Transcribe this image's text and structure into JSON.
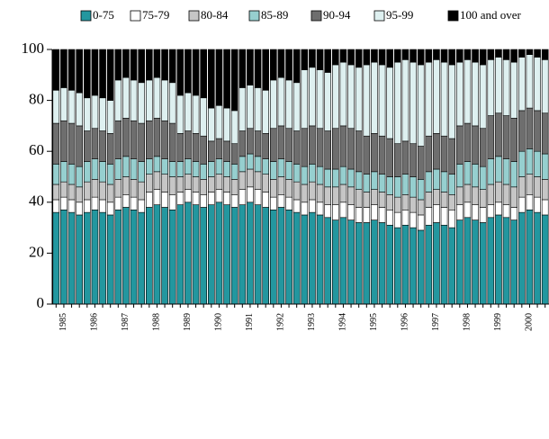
{
  "chart_data": {
    "type": "stacked-bar",
    "categories": [
      null,
      "1985",
      null,
      null,
      null,
      "1986",
      null,
      null,
      null,
      "1987",
      null,
      null,
      null,
      "1988",
      null,
      null,
      null,
      "1989",
      null,
      null,
      null,
      "1990",
      null,
      null,
      null,
      "1991",
      null,
      null,
      null,
      "1992",
      null,
      null,
      null,
      "1993",
      null,
      null,
      null,
      "1994",
      null,
      null,
      null,
      "1995",
      null,
      null,
      null,
      "1996",
      null,
      null,
      null,
      "1997",
      null,
      null,
      null,
      "1998",
      null,
      null,
      null,
      "1999",
      null,
      null,
      null,
      "2000",
      null,
      null
    ],
    "series": [
      {
        "name": "0-75",
        "color": "#23979f",
        "values": [
          36,
          37,
          36,
          35,
          36,
          37,
          36,
          35,
          37,
          38,
          37,
          36,
          38,
          39,
          38,
          37,
          39,
          40,
          39,
          38,
          39,
          40,
          39,
          38,
          39,
          40,
          39,
          38,
          37,
          38,
          37,
          36,
          35,
          36,
          35,
          34,
          33,
          34,
          33,
          32,
          32,
          33,
          32,
          31,
          30,
          31,
          30,
          29,
          31,
          32,
          31,
          30,
          33,
          34,
          33,
          32,
          34,
          35,
          34,
          33,
          36,
          37,
          36,
          35
        ]
      },
      {
        "name": "75-79",
        "color": "#ffffff",
        "values": [
          5,
          5,
          5,
          5,
          5,
          5,
          5,
          5,
          5,
          5,
          5,
          5,
          6,
          6,
          6,
          6,
          5,
          5,
          5,
          5,
          5,
          5,
          5,
          5,
          6,
          6,
          6,
          6,
          5,
          5,
          5,
          5,
          5,
          5,
          5,
          5,
          6,
          6,
          6,
          6,
          6,
          6,
          6,
          6,
          6,
          6,
          6,
          6,
          7,
          7,
          7,
          7,
          6,
          6,
          6,
          6,
          5,
          5,
          5,
          5,
          6,
          6,
          6,
          6
        ]
      },
      {
        "name": "80-84",
        "color": "#c6c6c6",
        "values": [
          6,
          6,
          6,
          6,
          7,
          7,
          7,
          7,
          7,
          7,
          7,
          7,
          7,
          7,
          7,
          7,
          6,
          6,
          6,
          6,
          6,
          6,
          6,
          6,
          7,
          7,
          7,
          7,
          7,
          7,
          7,
          7,
          7,
          7,
          7,
          7,
          7,
          7,
          7,
          7,
          6,
          6,
          6,
          6,
          6,
          6,
          6,
          6,
          6,
          6,
          6,
          6,
          7,
          7,
          7,
          7,
          8,
          8,
          8,
          8,
          8,
          8,
          8,
          8
        ]
      },
      {
        "name": "85-89",
        "color": "#96cfcf",
        "values": [
          8,
          8,
          8,
          8,
          8,
          8,
          8,
          8,
          8,
          8,
          8,
          8,
          6,
          6,
          6,
          6,
          6,
          6,
          6,
          6,
          6,
          6,
          6,
          6,
          6,
          6,
          6,
          6,
          7,
          7,
          7,
          7,
          7,
          7,
          7,
          7,
          7,
          7,
          7,
          7,
          7,
          7,
          7,
          7,
          8,
          8,
          8,
          8,
          8,
          8,
          8,
          8,
          9,
          9,
          9,
          9,
          10,
          10,
          10,
          10,
          10,
          10,
          10,
          10
        ]
      },
      {
        "name": "90-94",
        "color": "#6e6e6e",
        "values": [
          16,
          16,
          16,
          16,
          12,
          12,
          12,
          12,
          15,
          15,
          15,
          15,
          15,
          15,
          15,
          15,
          11,
          11,
          11,
          11,
          8,
          8,
          8,
          8,
          10,
          10,
          10,
          10,
          13,
          13,
          13,
          13,
          15,
          15,
          15,
          15,
          16,
          16,
          16,
          16,
          15,
          15,
          15,
          15,
          13,
          13,
          13,
          13,
          14,
          14,
          14,
          14,
          15,
          15,
          15,
          15,
          17,
          17,
          17,
          17,
          16,
          16,
          16,
          16
        ]
      },
      {
        "name": "95-99",
        "color": "#def0f0",
        "values": [
          13,
          13,
          13,
          13,
          13,
          13,
          13,
          13,
          16,
          16,
          16,
          16,
          16,
          16,
          16,
          16,
          15,
          15,
          15,
          15,
          13,
          13,
          13,
          13,
          17,
          17,
          17,
          17,
          19,
          19,
          19,
          19,
          23,
          23,
          23,
          23,
          25,
          25,
          25,
          25,
          28,
          28,
          28,
          28,
          32,
          32,
          32,
          32,
          29,
          29,
          29,
          29,
          25,
          25,
          25,
          25,
          22,
          22,
          22,
          22,
          21,
          21,
          21,
          21
        ]
      },
      {
        "name": "100 and over",
        "color": "#000000",
        "values": [
          16,
          15,
          16,
          17,
          19,
          18,
          19,
          20,
          12,
          11,
          12,
          13,
          12,
          11,
          12,
          13,
          18,
          17,
          18,
          19,
          23,
          22,
          23,
          24,
          15,
          14,
          15,
          16,
          12,
          11,
          12,
          13,
          8,
          7,
          8,
          9,
          6,
          5,
          6,
          7,
          6,
          5,
          6,
          7,
          5,
          4,
          5,
          6,
          5,
          4,
          5,
          6,
          5,
          4,
          5,
          6,
          4,
          3,
          4,
          5,
          3,
          2,
          3,
          4
        ]
      }
    ],
    "ylim": [
      0,
      100
    ],
    "yticks": [
      0,
      20,
      40,
      60,
      80,
      100
    ],
    "legend": "top"
  }
}
